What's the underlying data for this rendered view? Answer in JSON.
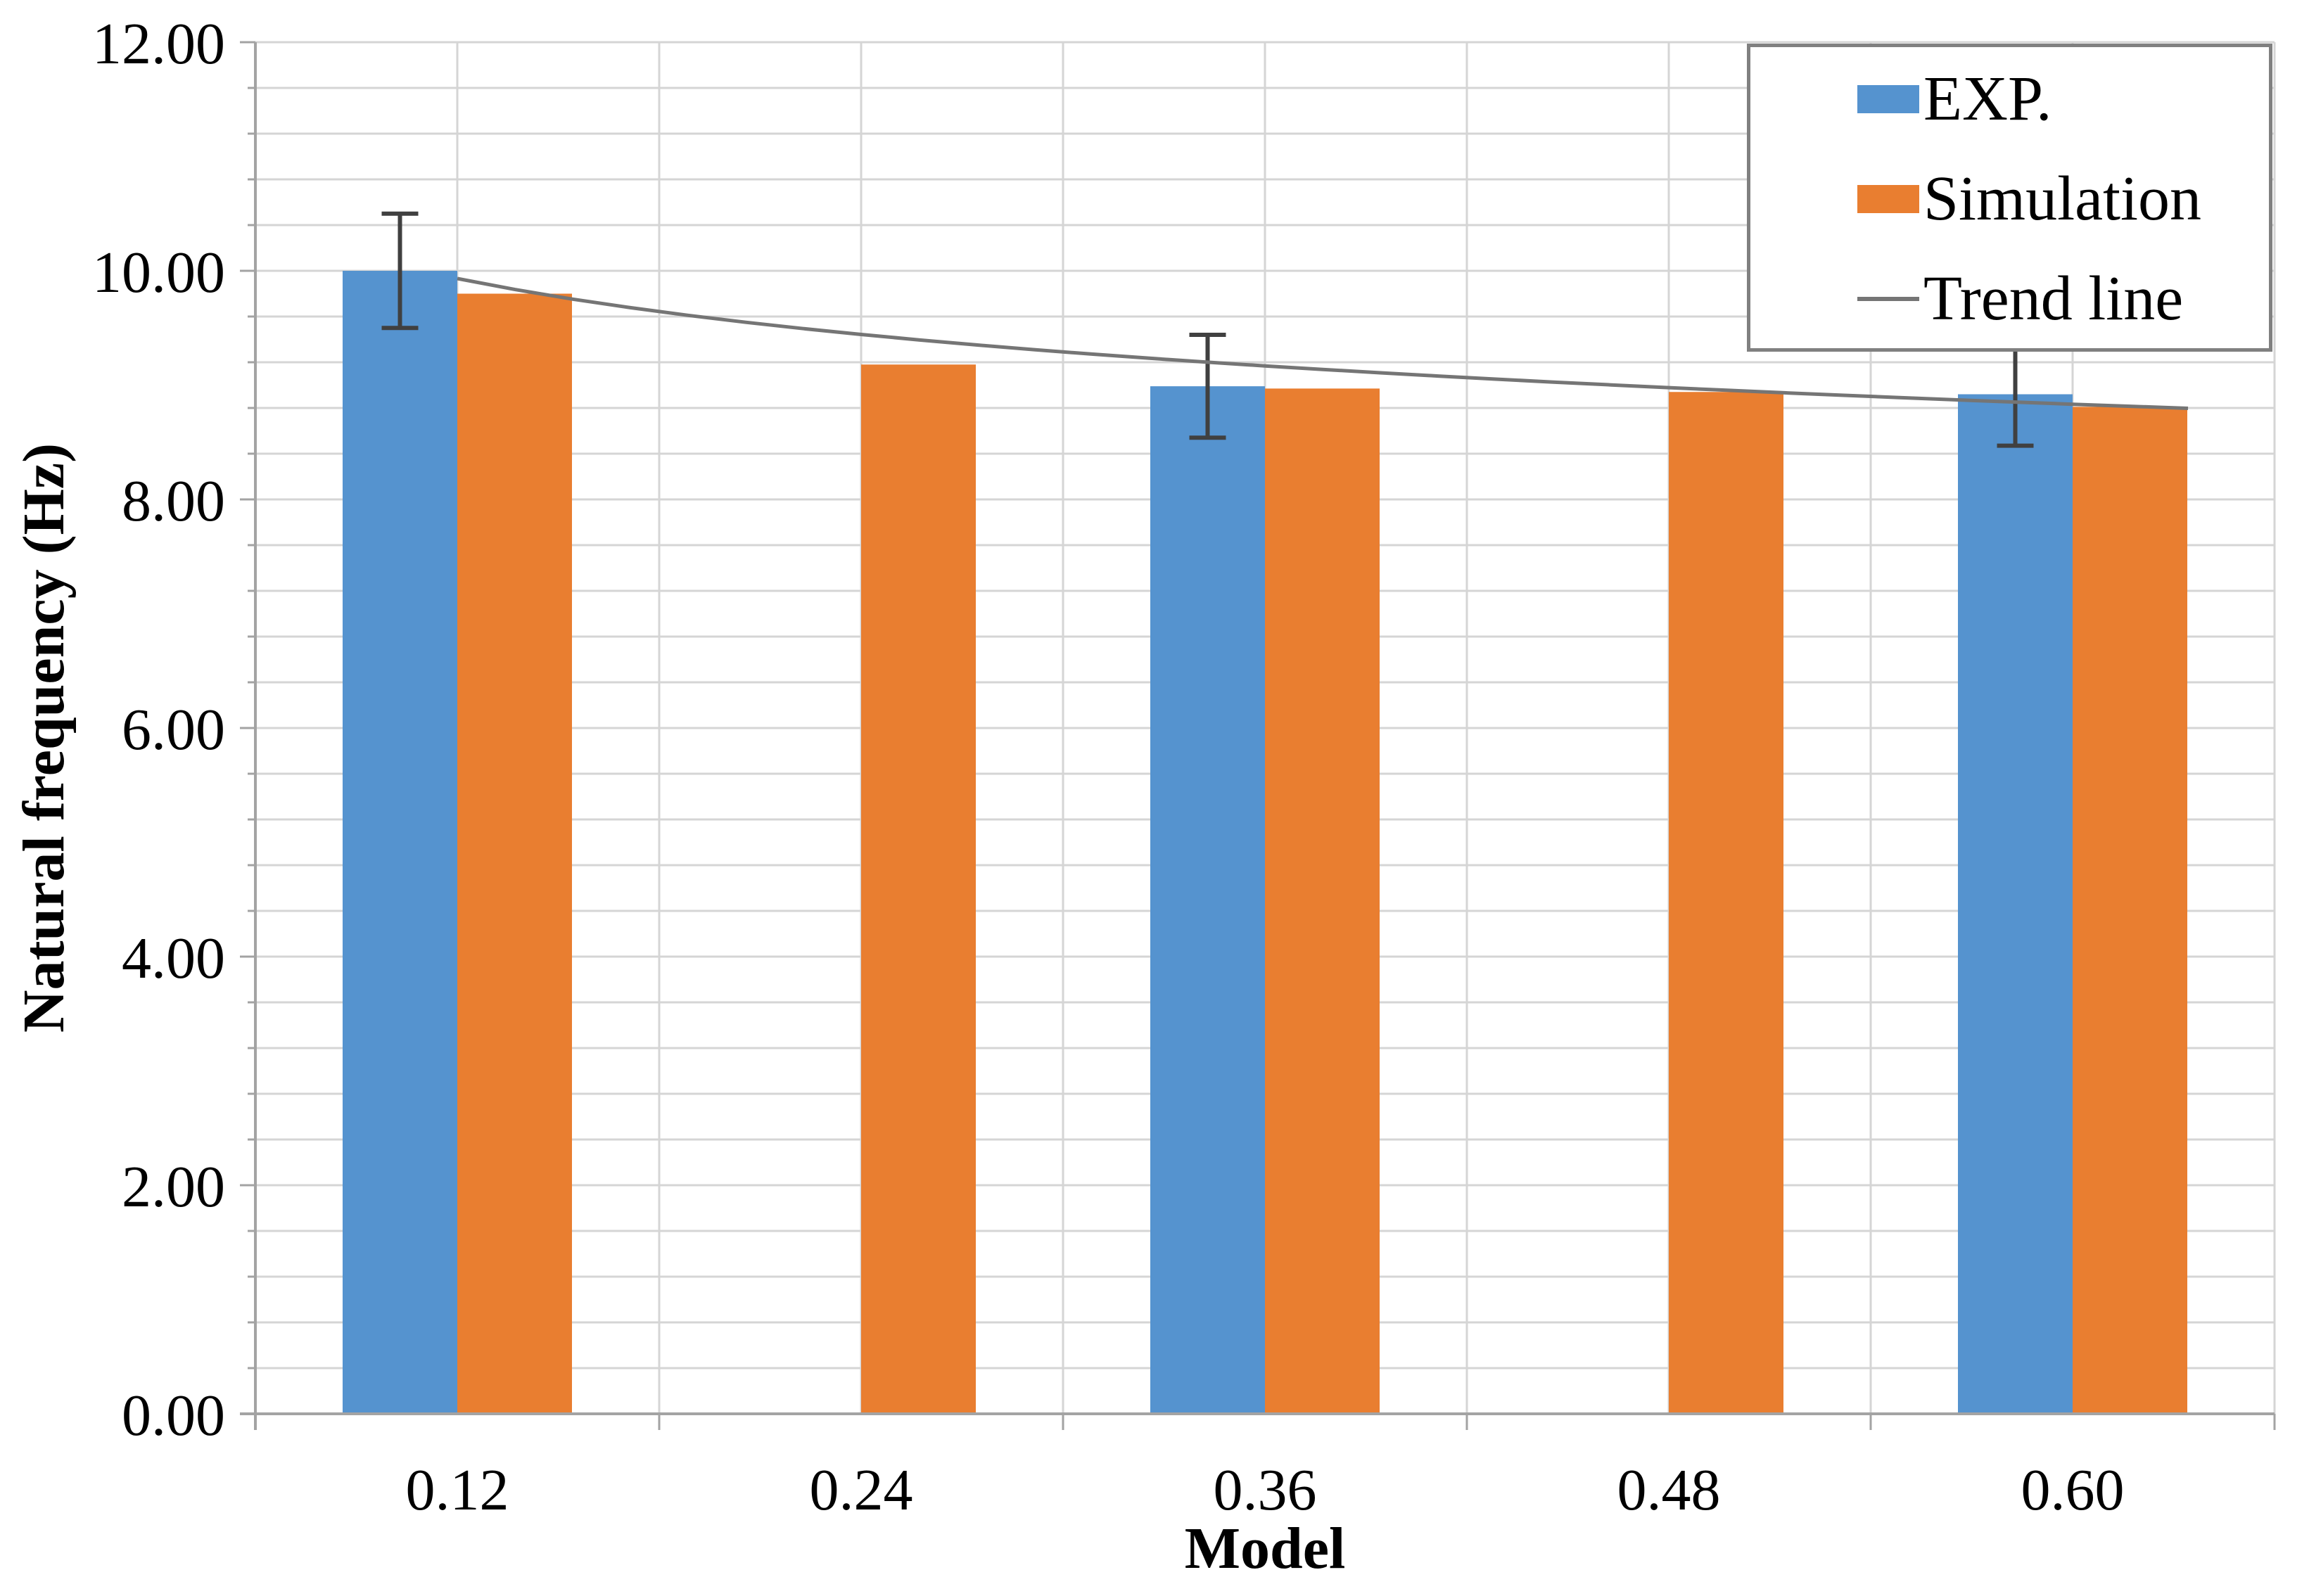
{
  "chart_data": {
    "type": "bar",
    "title": "",
    "xlabel": "Model",
    "ylabel": "Natural frequency (Hz)",
    "categories": [
      "0.12",
      "0.24",
      "0.36",
      "0.48",
      "0.60"
    ],
    "x_values": [
      0.12,
      0.24,
      0.36,
      0.48,
      0.6
    ],
    "series": [
      {
        "name": "EXP.",
        "color": "#5593CF",
        "values": [
          10.0,
          null,
          8.99,
          null,
          8.92
        ],
        "error_bars": [
          0.5,
          null,
          0.45,
          null,
          0.45
        ]
      },
      {
        "name": "Simulation",
        "color": "#E97E30",
        "values": [
          9.8,
          9.18,
          8.97,
          8.94,
          8.81
        ],
        "error_bars": null
      }
    ],
    "trendline": {
      "name": "Trend line",
      "fit": "power",
      "a": 8.51,
      "b": -0.0729,
      "color": "#757575"
    },
    "ylim": [
      0,
      12
    ],
    "ytick_major": 2.0,
    "ytick_minor": 0.4,
    "ytick_labels": [
      "0.00",
      "2.00",
      "4.00",
      "6.00",
      "8.00",
      "10.00",
      "12.00"
    ],
    "grid": true,
    "legend_position": "top-right"
  },
  "legend": {
    "items": [
      {
        "label": "EXP.",
        "swatch": "box",
        "color": "#5593CF"
      },
      {
        "label": "Simulation",
        "swatch": "box",
        "color": "#E97E30"
      },
      {
        "label": "Trend line",
        "swatch": "line",
        "color": "#757575"
      }
    ]
  },
  "axes": {
    "x_title": "Model",
    "y_title": "Natural frequency (Hz)"
  },
  "colors": {
    "gridline": "#D5D5D5",
    "axis": "#A3A3A3",
    "error_bar": "#404040",
    "text": "#000000",
    "legend_border": "#808080",
    "background": "#FFFFFF"
  }
}
